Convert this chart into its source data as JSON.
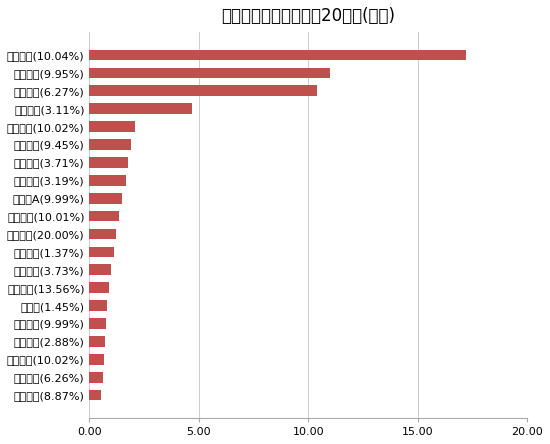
{
  "title": "主力资金净流入金额前20个股(亿元)",
  "categories": [
    "国光电器(8.87%)",
    "紫光股份(6.26%)",
    "汉王科技(10.02%)",
    "三一重工(2.88%)",
    "博彦科技(9.99%)",
    "五粮液(1.45%)",
    "昆仑万维(13.56%)",
    "海康威视(3.73%)",
    "贵州茅台(1.37%)",
    "数码视讯(20.00%)",
    "用友网络(10.01%)",
    "深桑达A(9.99%)",
    "科大讯飞(3.19%)",
    "中国平安(3.71%)",
    "大华股份(9.45%)",
    "电科网安(10.02%)",
    "多利科技(3.11%)",
    "中国电建(6.27%)",
    "浪潮信息(9.95%)",
    "中国联通(10.04%)"
  ],
  "values": [
    0.55,
    0.6,
    0.65,
    0.7,
    0.75,
    0.8,
    0.9,
    1.0,
    1.1,
    1.2,
    1.35,
    1.5,
    1.65,
    1.75,
    1.9,
    2.1,
    4.7,
    10.4,
    11.0,
    17.2
  ],
  "bar_color": "#c0504d",
  "background_color": "#ffffff",
  "xlim": [
    0,
    20
  ],
  "xticks": [
    0.0,
    5.0,
    10.0,
    15.0,
    20.0
  ],
  "title_fontsize": 12,
  "label_fontsize": 8,
  "tick_fontsize": 8
}
